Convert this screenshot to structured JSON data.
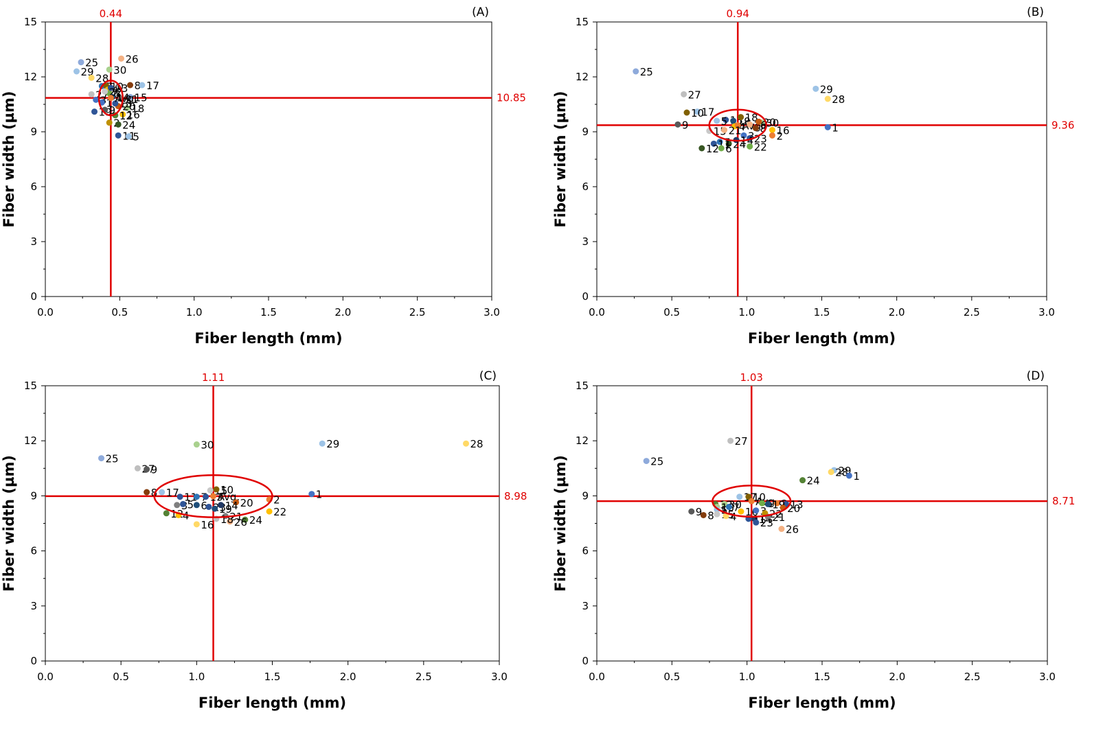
{
  "chart_data": [
    {
      "type": "scatter",
      "panel": "(A)",
      "xlabel": "Fiber length (mm)",
      "ylabel": "Fiber width (µm)",
      "xlim": [
        0,
        3.0
      ],
      "ylim": [
        0,
        15
      ],
      "xticks": [
        "0.0",
        "0.5",
        "1.0",
        "1.5",
        "2.0",
        "2.5",
        "3.0"
      ],
      "yticks": [
        "0",
        "3",
        "6",
        "9",
        "12",
        "15"
      ],
      "avg_x": 0.44,
      "avg_y": 10.85,
      "avg_x_label": "0.44",
      "avg_y_label": "10.85",
      "ellipse_rx": 0.08,
      "ellipse_ry": 0.95,
      "points": [
        {
          "label": "25",
          "x": 0.24,
          "y": 12.8,
          "color": "#8eaadb"
        },
        {
          "label": "29",
          "x": 0.21,
          "y": 12.3,
          "color": "#9dc3e6"
        },
        {
          "label": "28",
          "x": 0.31,
          "y": 11.95,
          "color": "#ffd966"
        },
        {
          "label": "26",
          "x": 0.51,
          "y": 13.0,
          "color": "#f4b183"
        },
        {
          "label": "30",
          "x": 0.43,
          "y": 12.4,
          "color": "#a9d18e"
        },
        {
          "label": "8",
          "x": 0.57,
          "y": 11.55,
          "color": "#843c0c"
        },
        {
          "label": "17",
          "x": 0.65,
          "y": 11.55,
          "color": "#9dc3e6"
        },
        {
          "label": "27",
          "x": 0.31,
          "y": 11.05,
          "color": "#bfbfbf"
        },
        {
          "label": "3",
          "x": 0.34,
          "y": 10.75,
          "color": "#4472c4"
        },
        {
          "label": "19",
          "x": 0.33,
          "y": 10.1,
          "color": "#2f5597"
        },
        {
          "label": "2",
          "x": 0.43,
          "y": 9.5,
          "color": "#bf9000"
        },
        {
          "label": "24",
          "x": 0.49,
          "y": 9.4,
          "color": "#375623"
        },
        {
          "label": "11",
          "x": 0.49,
          "y": 8.8,
          "color": "#2f5597"
        },
        {
          "label": "5",
          "x": 0.56,
          "y": 8.75,
          "color": "#9dc3e6"
        },
        {
          "label": "15",
          "x": 0.57,
          "y": 10.9,
          "color": "#8eaadb"
        },
        {
          "label": "21",
          "x": 0.51,
          "y": 10.8,
          "color": "#7f7f7f"
        },
        {
          "label": "18",
          "x": 0.55,
          "y": 10.3,
          "color": "#a9d18e"
        },
        {
          "label": "20",
          "x": 0.49,
          "y": 10.4,
          "color": "#c55a11"
        },
        {
          "label": "16",
          "x": 0.52,
          "y": 9.95,
          "color": "#ffc000"
        },
        {
          "label": "12",
          "x": 0.47,
          "y": 9.9,
          "color": "#548235"
        },
        {
          "label": "13",
          "x": 0.47,
          "y": 10.55,
          "color": "#2f5597"
        },
        {
          "label": "9",
          "x": 0.4,
          "y": 10.2,
          "color": "#595959"
        },
        {
          "label": "1",
          "x": 0.38,
          "y": 10.6,
          "color": "#4472c4"
        },
        {
          "label": "7",
          "x": 0.38,
          "y": 11.5,
          "color": "#2e75b6"
        },
        {
          "label": "10",
          "x": 0.41,
          "y": 11.5,
          "color": "#806000"
        },
        {
          "label": "4",
          "x": 0.42,
          "y": 11.3,
          "color": "#ffc000"
        },
        {
          "label": "6",
          "x": 0.43,
          "y": 11.1,
          "color": "#70ad47"
        },
        {
          "label": "14",
          "x": 0.45,
          "y": 10.9,
          "color": "#1f4e79"
        },
        {
          "label": "23",
          "x": 0.44,
          "y": 11.4,
          "color": "#305496"
        },
        {
          "label": "22",
          "x": 0.4,
          "y": 11.2,
          "color": "#c9c9c9"
        },
        {
          "label": "Avg.",
          "x": 0.44,
          "y": 10.85,
          "color": "#ed7d31"
        }
      ]
    },
    {
      "type": "scatter",
      "panel": "(B)",
      "xlabel": "Fiber length (mm)",
      "ylabel": "Fiber width (µm)",
      "xlim": [
        0,
        3.0
      ],
      "ylim": [
        0,
        15
      ],
      "xticks": [
        "0.0",
        "0.5",
        "1.0",
        "1.5",
        "2.0",
        "2.5",
        "3.0"
      ],
      "yticks": [
        "0",
        "3",
        "6",
        "9",
        "12",
        "15"
      ],
      "avg_x": 0.94,
      "avg_y": 9.36,
      "avg_x_label": "0.94",
      "avg_y_label": "9.36",
      "ellipse_rx": 0.19,
      "ellipse_ry": 0.85,
      "points": [
        {
          "label": "25",
          "x": 0.26,
          "y": 12.3,
          "color": "#8eaadb"
        },
        {
          "label": "27",
          "x": 0.58,
          "y": 11.05,
          "color": "#bfbfbf"
        },
        {
          "label": "29",
          "x": 1.46,
          "y": 11.35,
          "color": "#9dc3e6"
        },
        {
          "label": "28",
          "x": 1.54,
          "y": 10.8,
          "color": "#ffd966"
        },
        {
          "label": "17",
          "x": 0.67,
          "y": 10.1,
          "color": "#9dc3e6"
        },
        {
          "label": "10",
          "x": 0.6,
          "y": 10.05,
          "color": "#806000"
        },
        {
          "label": "9",
          "x": 0.54,
          "y": 9.4,
          "color": "#595959"
        },
        {
          "label": "1",
          "x": 1.54,
          "y": 9.25,
          "color": "#4472c4"
        },
        {
          "label": "16",
          "x": 1.17,
          "y": 9.1,
          "color": "#ffc000"
        },
        {
          "label": "2",
          "x": 1.17,
          "y": 8.8,
          "color": "#ed7d31"
        },
        {
          "label": "13",
          "x": 0.86,
          "y": 9.65,
          "color": "#2f5597"
        },
        {
          "label": "19",
          "x": 0.91,
          "y": 9.6,
          "color": "#1f4e79"
        },
        {
          "label": "5",
          "x": 0.8,
          "y": 9.6,
          "color": "#9dc3e6"
        },
        {
          "label": "15",
          "x": 0.75,
          "y": 9.05,
          "color": "#c9c9c9"
        },
        {
          "label": "4",
          "x": 0.92,
          "y": 9.3,
          "color": "#ffc000"
        },
        {
          "label": "Avg.",
          "x": 0.94,
          "y": 9.36,
          "color": "#ed7d31"
        },
        {
          "label": "30",
          "x": 1.1,
          "y": 9.5,
          "color": "#a9d18e"
        },
        {
          "label": "26",
          "x": 1.02,
          "y": 9.4,
          "color": "#f4b183"
        },
        {
          "label": "8",
          "x": 1.06,
          "y": 9.2,
          "color": "#843c0c"
        },
        {
          "label": "18",
          "x": 0.96,
          "y": 9.8,
          "color": "#806000"
        },
        {
          "label": "3",
          "x": 0.98,
          "y": 8.8,
          "color": "#4472c4"
        },
        {
          "label": "23",
          "x": 1.02,
          "y": 8.65,
          "color": "#305496"
        },
        {
          "label": "14",
          "x": 0.93,
          "y": 8.55,
          "color": "#203864"
        },
        {
          "label": "24",
          "x": 0.88,
          "y": 8.35,
          "color": "#375623"
        },
        {
          "label": "7",
          "x": 0.82,
          "y": 8.45,
          "color": "#2e75b6"
        },
        {
          "label": "11",
          "x": 0.78,
          "y": 8.35,
          "color": "#2f5597"
        },
        {
          "label": "12",
          "x": 0.7,
          "y": 8.1,
          "color": "#375623"
        },
        {
          "label": "6",
          "x": 0.83,
          "y": 8.1,
          "color": "#70ad47"
        },
        {
          "label": "22",
          "x": 1.02,
          "y": 8.2,
          "color": "#70ad47"
        },
        {
          "label": "20",
          "x": 1.08,
          "y": 9.55,
          "color": "#c55a11"
        },
        {
          "label": "21",
          "x": 0.85,
          "y": 9.1,
          "color": "#f4b183"
        }
      ]
    },
    {
      "type": "scatter",
      "panel": "(C)",
      "xlabel": "Fiber length (mm)",
      "ylabel": "Fiber width (µm)",
      "xlim": [
        0,
        3.0
      ],
      "ylim": [
        0,
        15
      ],
      "xticks": [
        "0.0",
        "0.5",
        "1.0",
        "1.5",
        "2.0",
        "2.5",
        "3.0"
      ],
      "yticks": [
        "0",
        "3",
        "6",
        "9",
        "12",
        "15"
      ],
      "avg_x": 1.11,
      "avg_y": 8.98,
      "avg_x_label": "1.11",
      "avg_y_label": "8.98",
      "ellipse_rx": 0.39,
      "ellipse_ry": 1.15,
      "points": [
        {
          "label": "25",
          "x": 0.37,
          "y": 11.05,
          "color": "#8eaadb"
        },
        {
          "label": "30",
          "x": 1.0,
          "y": 11.8,
          "color": "#a9d18e"
        },
        {
          "label": "29",
          "x": 1.83,
          "y": 11.85,
          "color": "#9dc3e6"
        },
        {
          "label": "28",
          "x": 2.78,
          "y": 11.85,
          "color": "#ffd966"
        },
        {
          "label": "27",
          "x": 0.61,
          "y": 10.5,
          "color": "#bfbfbf"
        },
        {
          "label": "9",
          "x": 0.67,
          "y": 10.45,
          "color": "#595959"
        },
        {
          "label": "8",
          "x": 0.67,
          "y": 9.2,
          "color": "#843c0c"
        },
        {
          "label": "17",
          "x": 0.77,
          "y": 9.2,
          "color": "#9dc3e6"
        },
        {
          "label": "15",
          "x": 1.09,
          "y": 9.3,
          "color": "#c9c9c9"
        },
        {
          "label": "10",
          "x": 1.13,
          "y": 9.35,
          "color": "#806000"
        },
        {
          "label": "11",
          "x": 0.89,
          "y": 8.95,
          "color": "#2f5597"
        },
        {
          "label": "7",
          "x": 1.0,
          "y": 8.95,
          "color": "#2e75b6"
        },
        {
          "label": "13",
          "x": 1.06,
          "y": 8.95,
          "color": "#2f5597"
        },
        {
          "label": "Avg.",
          "x": 1.11,
          "y": 8.98,
          "color": "#ed7d31"
        },
        {
          "label": "1",
          "x": 1.76,
          "y": 9.1,
          "color": "#4472c4"
        },
        {
          "label": "2",
          "x": 1.48,
          "y": 8.8,
          "color": "#ed7d31"
        },
        {
          "label": "20",
          "x": 1.26,
          "y": 8.65,
          "color": "#c55a11"
        },
        {
          "label": "22",
          "x": 1.48,
          "y": 8.15,
          "color": "#ffc000"
        },
        {
          "label": "3",
          "x": 0.87,
          "y": 8.5,
          "color": "#7f7f7f"
        },
        {
          "label": "5",
          "x": 0.91,
          "y": 8.55,
          "color": "#2f5597"
        },
        {
          "label": "12",
          "x": 0.8,
          "y": 8.05,
          "color": "#548235"
        },
        {
          "label": "4",
          "x": 0.88,
          "y": 7.95,
          "color": "#ffc000"
        },
        {
          "label": "6",
          "x": 1.0,
          "y": 8.5,
          "color": "#1f4e79"
        },
        {
          "label": "23",
          "x": 1.08,
          "y": 8.4,
          "color": "#305496"
        },
        {
          "label": "19",
          "x": 1.12,
          "y": 8.3,
          "color": "#1f4e79"
        },
        {
          "label": "14",
          "x": 1.16,
          "y": 8.5,
          "color": "#203864"
        },
        {
          "label": "21",
          "x": 1.19,
          "y": 7.9,
          "color": "#7f7f7f"
        },
        {
          "label": "24",
          "x": 1.32,
          "y": 7.7,
          "color": "#548235"
        },
        {
          "label": "26",
          "x": 1.22,
          "y": 7.6,
          "color": "#f4b183"
        },
        {
          "label": "16",
          "x": 1.0,
          "y": 7.45,
          "color": "#ffd966"
        },
        {
          "label": "18",
          "x": 1.13,
          "y": 7.75,
          "color": "#bfbfbf"
        }
      ]
    },
    {
      "type": "scatter",
      "panel": "(D)",
      "xlabel": "Fiber length (mm)",
      "ylabel": "Fiber width (µm)",
      "xlim": [
        0,
        3.0
      ],
      "ylim": [
        0,
        15
      ],
      "xticks": [
        "0.0",
        "0.5",
        "1.0",
        "1.5",
        "2.0",
        "2.5",
        "3.0"
      ],
      "yticks": [
        "0",
        "3",
        "6",
        "9",
        "12",
        "15"
      ],
      "avg_x": 1.03,
      "avg_y": 8.71,
      "avg_x_label": "1.03",
      "avg_y_label": "8.71",
      "ellipse_rx": 0.26,
      "ellipse_ry": 0.85,
      "points": [
        {
          "label": "25",
          "x": 0.33,
          "y": 10.9,
          "color": "#8eaadb"
        },
        {
          "label": "27",
          "x": 0.89,
          "y": 12.0,
          "color": "#bfbfbf"
        },
        {
          "label": "29",
          "x": 1.58,
          "y": 10.4,
          "color": "#9dc3e6"
        },
        {
          "label": "28",
          "x": 1.56,
          "y": 10.3,
          "color": "#ffd966"
        },
        {
          "label": "1",
          "x": 1.68,
          "y": 10.1,
          "color": "#4472c4"
        },
        {
          "label": "24",
          "x": 1.37,
          "y": 9.85,
          "color": "#548235"
        },
        {
          "label": "17",
          "x": 0.95,
          "y": 8.95,
          "color": "#9dc3e6"
        },
        {
          "label": "10",
          "x": 1.01,
          "y": 8.95,
          "color": "#806000"
        },
        {
          "label": "12",
          "x": 0.79,
          "y": 8.55,
          "color": "#548235"
        },
        {
          "label": "30",
          "x": 0.85,
          "y": 8.55,
          "color": "#a9d18e"
        },
        {
          "label": "Avg.",
          "x": 1.03,
          "y": 8.71,
          "color": "#ed7d31"
        },
        {
          "label": "2",
          "x": 1.2,
          "y": 8.6,
          "color": "#ed7d31"
        },
        {
          "label": "13",
          "x": 1.26,
          "y": 8.55,
          "color": "#2f5597"
        },
        {
          "label": "6",
          "x": 1.1,
          "y": 8.6,
          "color": "#70ad47"
        },
        {
          "label": "19",
          "x": 1.14,
          "y": 8.55,
          "color": "#1f4e79"
        },
        {
          "label": "20",
          "x": 1.24,
          "y": 8.35,
          "color": "#c55a11"
        },
        {
          "label": "18",
          "x": 0.8,
          "y": 8.4,
          "color": "#a9d18e"
        },
        {
          "label": "9",
          "x": 0.63,
          "y": 8.15,
          "color": "#595959"
        },
        {
          "label": "8",
          "x": 0.71,
          "y": 7.95,
          "color": "#843c0c"
        },
        {
          "label": "5",
          "x": 0.8,
          "y": 8.25,
          "color": "#9dc3e6"
        },
        {
          "label": "15",
          "x": 0.8,
          "y": 8.0,
          "color": "#c9c9c9"
        },
        {
          "label": "7",
          "x": 0.88,
          "y": 8.4,
          "color": "#2e75b6"
        },
        {
          "label": "16",
          "x": 0.96,
          "y": 8.15,
          "color": "#ffc000"
        },
        {
          "label": "3",
          "x": 1.06,
          "y": 8.2,
          "color": "#4472c4"
        },
        {
          "label": "22",
          "x": 1.12,
          "y": 8.05,
          "color": "#bf9000"
        },
        {
          "label": "14",
          "x": 1.05,
          "y": 7.75,
          "color": "#203864"
        },
        {
          "label": "21",
          "x": 1.14,
          "y": 7.85,
          "color": "#7f7f7f"
        },
        {
          "label": "4",
          "x": 0.86,
          "y": 7.9,
          "color": "#ffd966"
        },
        {
          "label": "11",
          "x": 1.01,
          "y": 7.75,
          "color": "#2f5597"
        },
        {
          "label": "23",
          "x": 1.06,
          "y": 7.55,
          "color": "#305496"
        },
        {
          "label": "26",
          "x": 1.23,
          "y": 7.2,
          "color": "#f4b183"
        }
      ]
    }
  ]
}
